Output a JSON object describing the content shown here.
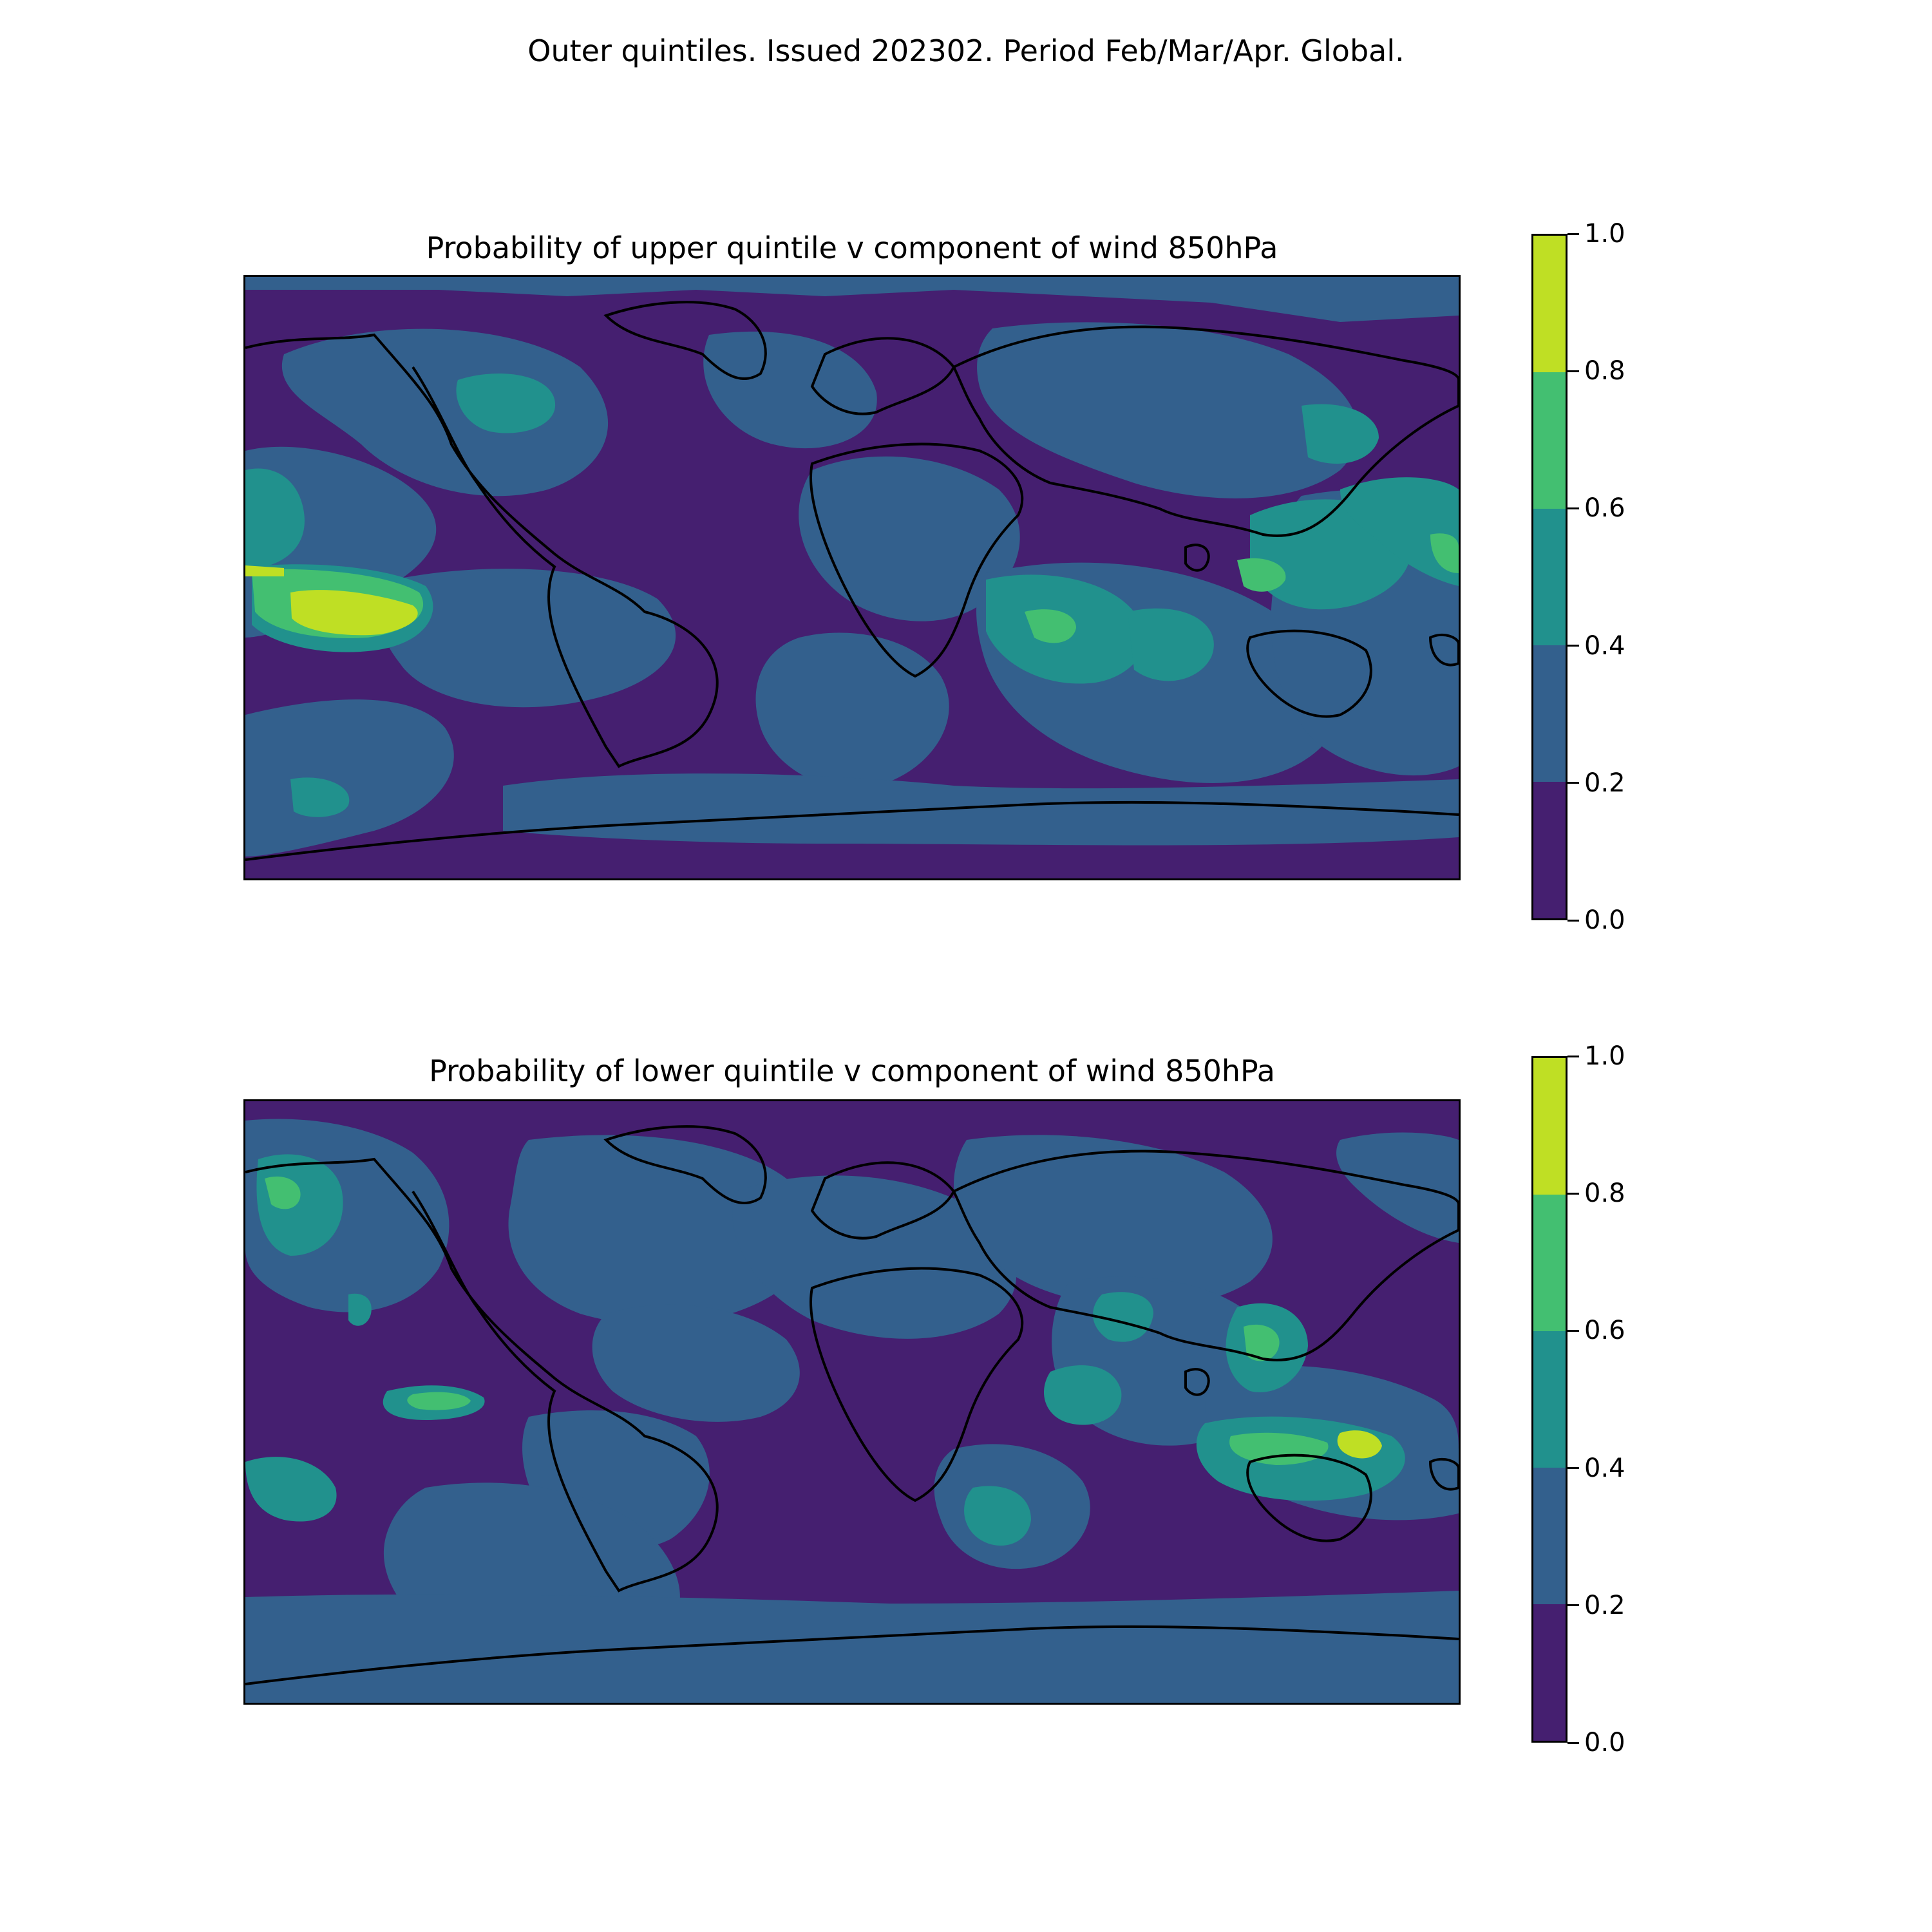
{
  "figure": {
    "suptitle": "Outer quintiles. Issued 202302. Period Feb/Mar/Apr. Global."
  },
  "maps": [
    {
      "title": "Probability of upper quintile v component of wind 850hPa",
      "colorbar": {
        "ticks": [
          "0.0",
          "0.2",
          "0.4",
          "0.6",
          "0.8",
          "1.0"
        ],
        "levels": [
          0.0,
          0.2,
          0.4,
          0.6,
          0.8,
          1.0
        ],
        "colors": [
          "#451f70",
          "#33608d",
          "#21918d",
          "#43bf71",
          "#bfdf24"
        ]
      }
    },
    {
      "title": "Probability of lower quintile v component of wind 850hPa",
      "colorbar": {
        "ticks": [
          "0.0",
          "0.2",
          "0.4",
          "0.6",
          "0.8",
          "1.0"
        ],
        "levels": [
          0.0,
          0.2,
          0.4,
          0.6,
          0.8,
          1.0
        ],
        "colors": [
          "#451f70",
          "#33608d",
          "#21918d",
          "#43bf71",
          "#bfdf24"
        ]
      }
    }
  ],
  "chart_data": {
    "type": "heatmap",
    "projection": "PlateCarree, global",
    "colormap": "viridis, 5 discrete levels",
    "value_range": [
      0.0,
      1.0
    ]
  }
}
